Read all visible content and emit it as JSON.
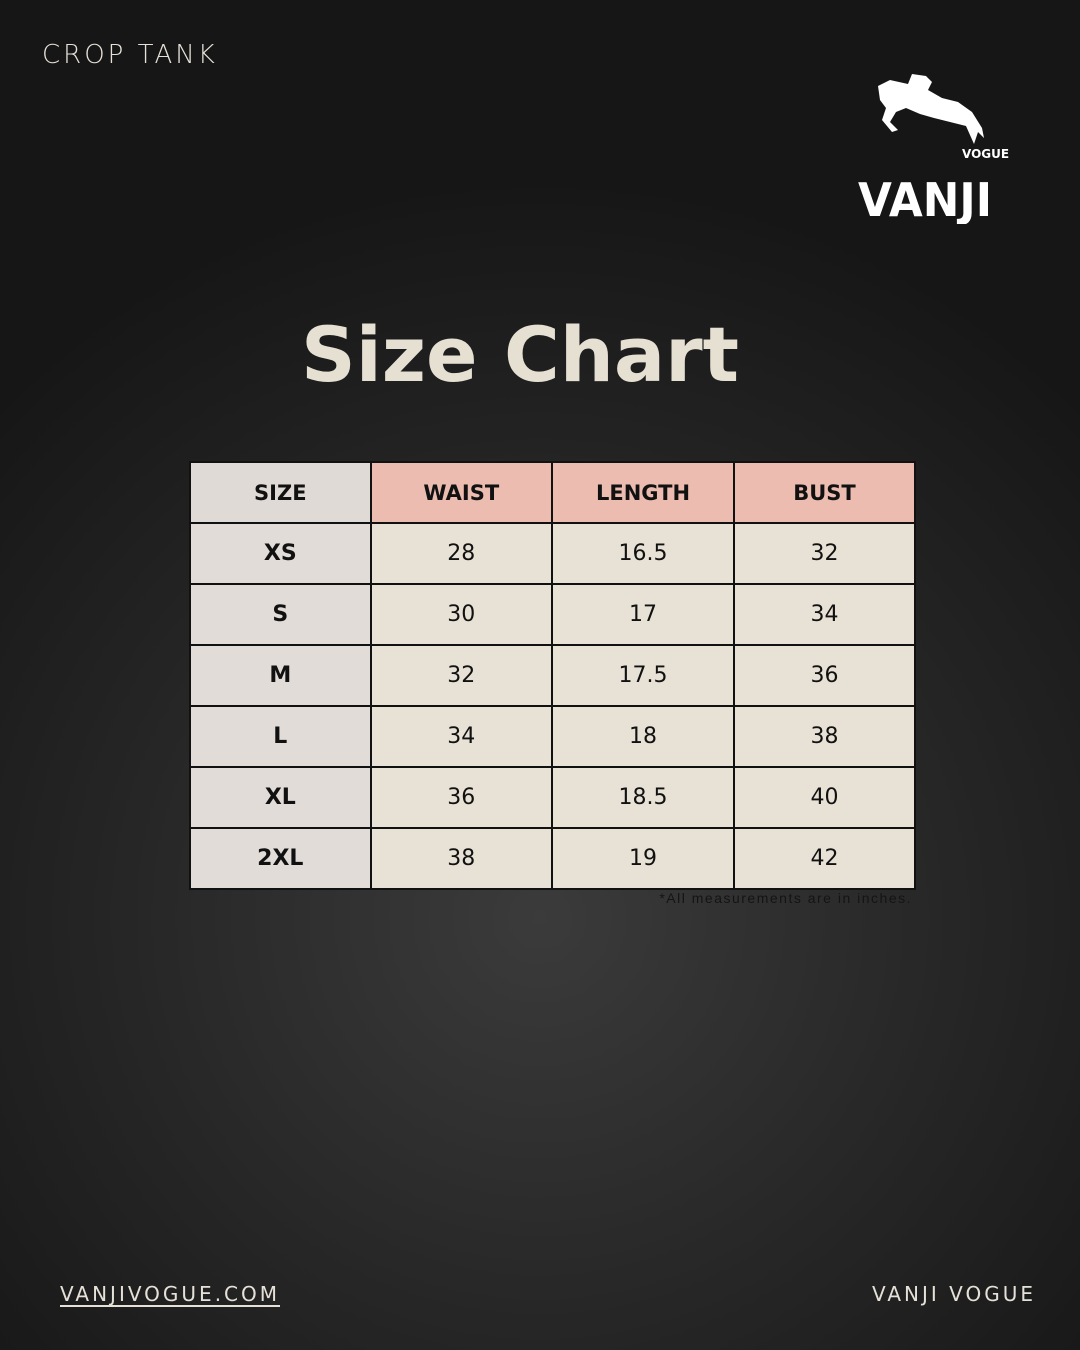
{
  "header": {
    "product": "CROP TANK",
    "brand_logo": "VANJI VOGUE"
  },
  "title": "Size Chart",
  "table": {
    "columns": [
      "SIZE",
      "WAIST",
      "LENGTH",
      "BUST"
    ],
    "rows": [
      [
        "XS",
        "28",
        "16.5",
        "32"
      ],
      [
        "S",
        "30",
        "17",
        "34"
      ],
      [
        "M",
        "32",
        "17.5",
        "36"
      ],
      [
        "L",
        "34",
        "18",
        "38"
      ],
      [
        "XL",
        "36",
        "18.5",
        "40"
      ],
      [
        "2XL",
        "38",
        "19",
        "42"
      ]
    ]
  },
  "note": "*All measurements are in inches.",
  "footer": {
    "website": "VANJIVOGUE.COM",
    "brand": "VANJI VOGUE"
  },
  "colors": {
    "header_accent": "#ebbcaf",
    "cell": "#e8e1d6",
    "title": "#e6e0d3"
  }
}
